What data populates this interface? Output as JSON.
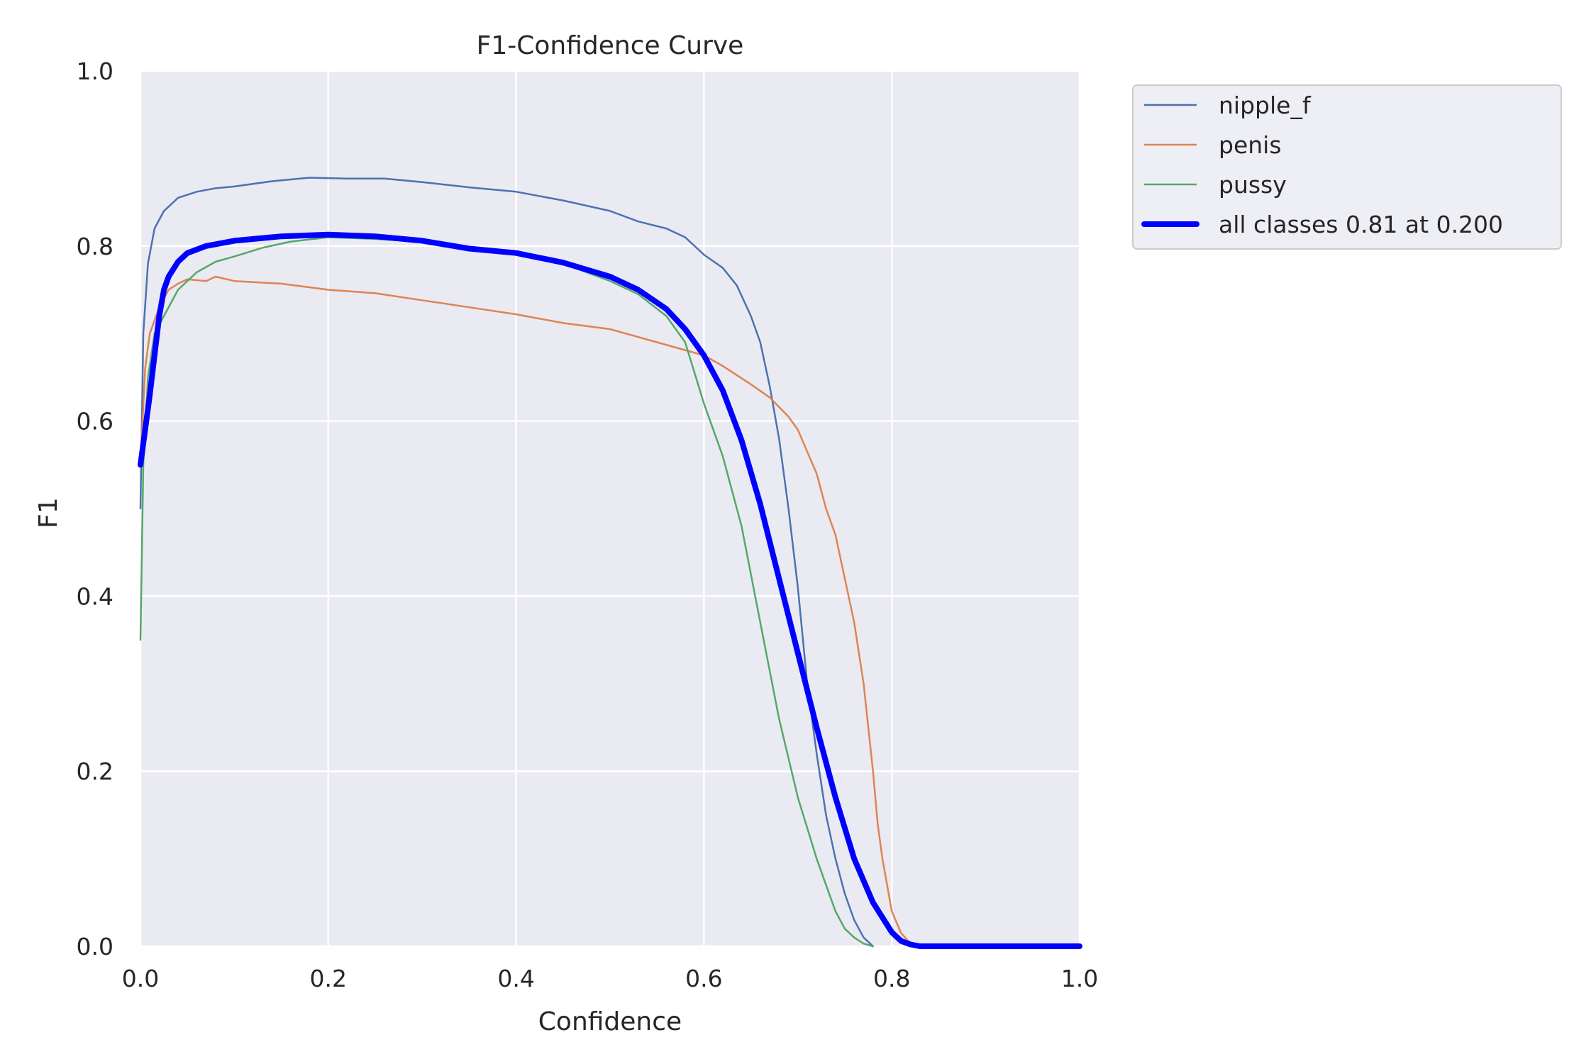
{
  "chart_data": {
    "type": "line",
    "title": "F1-Confidence Curve",
    "xlabel": "Confidence",
    "ylabel": "F1",
    "xlim": [
      0.0,
      1.0
    ],
    "ylim": [
      0.0,
      1.0
    ],
    "xticks": [
      "0.0",
      "0.2",
      "0.4",
      "0.6",
      "0.8",
      "1.0"
    ],
    "yticks": [
      "0.0",
      "0.2",
      "0.4",
      "0.6",
      "0.8",
      "1.0"
    ],
    "grid": true,
    "legend_position": "outside upper right",
    "background_color": "#eaeaf2",
    "series": [
      {
        "name": "nipple_f",
        "color": "#4c72b0",
        "width": 2.5,
        "x": [
          0.0,
          0.003,
          0.008,
          0.015,
          0.025,
          0.04,
          0.06,
          0.08,
          0.1,
          0.14,
          0.18,
          0.22,
          0.26,
          0.3,
          0.35,
          0.4,
          0.45,
          0.5,
          0.53,
          0.56,
          0.58,
          0.6,
          0.62,
          0.635,
          0.65,
          0.66,
          0.67,
          0.68,
          0.69,
          0.7,
          0.71,
          0.72,
          0.73,
          0.74,
          0.75,
          0.76,
          0.77,
          0.78
        ],
        "y": [
          0.5,
          0.7,
          0.78,
          0.82,
          0.84,
          0.855,
          0.862,
          0.866,
          0.868,
          0.874,
          0.878,
          0.877,
          0.877,
          0.873,
          0.867,
          0.862,
          0.852,
          0.84,
          0.828,
          0.82,
          0.81,
          0.79,
          0.775,
          0.755,
          0.72,
          0.69,
          0.64,
          0.58,
          0.5,
          0.41,
          0.3,
          0.22,
          0.15,
          0.1,
          0.06,
          0.03,
          0.01,
          0.0
        ]
      },
      {
        "name": "penis",
        "color": "#dd8452",
        "width": 2.5,
        "x": [
          0.0,
          0.005,
          0.01,
          0.02,
          0.03,
          0.04,
          0.05,
          0.07,
          0.08,
          0.1,
          0.15,
          0.2,
          0.25,
          0.3,
          0.35,
          0.4,
          0.45,
          0.5,
          0.55,
          0.6,
          0.62,
          0.65,
          0.67,
          0.69,
          0.7,
          0.71,
          0.72,
          0.73,
          0.74,
          0.75,
          0.76,
          0.77,
          0.775,
          0.78,
          0.785,
          0.79,
          0.8,
          0.81,
          0.82,
          0.83
        ],
        "y": [
          0.55,
          0.66,
          0.7,
          0.73,
          0.75,
          0.757,
          0.762,
          0.76,
          0.765,
          0.76,
          0.757,
          0.75,
          0.746,
          0.738,
          0.73,
          0.722,
          0.712,
          0.705,
          0.69,
          0.675,
          0.663,
          0.642,
          0.627,
          0.605,
          0.59,
          0.565,
          0.54,
          0.5,
          0.47,
          0.42,
          0.37,
          0.3,
          0.25,
          0.2,
          0.14,
          0.1,
          0.04,
          0.015,
          0.003,
          0.0
        ]
      },
      {
        "name": "pussy",
        "color": "#55a868",
        "width": 2.5,
        "x": [
          0.0,
          0.003,
          0.008,
          0.015,
          0.025,
          0.04,
          0.06,
          0.08,
          0.1,
          0.13,
          0.16,
          0.2,
          0.25,
          0.3,
          0.35,
          0.4,
          0.45,
          0.5,
          0.53,
          0.56,
          0.58,
          0.6,
          0.62,
          0.64,
          0.66,
          0.68,
          0.7,
          0.72,
          0.73,
          0.74,
          0.75,
          0.76,
          0.77,
          0.78
        ],
        "y": [
          0.35,
          0.55,
          0.65,
          0.7,
          0.72,
          0.75,
          0.77,
          0.782,
          0.788,
          0.798,
          0.805,
          0.81,
          0.808,
          0.805,
          0.797,
          0.79,
          0.78,
          0.76,
          0.745,
          0.72,
          0.69,
          0.62,
          0.56,
          0.48,
          0.37,
          0.26,
          0.17,
          0.1,
          0.07,
          0.04,
          0.02,
          0.01,
          0.003,
          0.0
        ]
      },
      {
        "name": "all classes 0.81 at 0.200",
        "color": "#0000ff",
        "width": 8,
        "x": [
          0.0,
          0.01,
          0.02,
          0.025,
          0.03,
          0.04,
          0.05,
          0.07,
          0.1,
          0.15,
          0.2,
          0.25,
          0.3,
          0.35,
          0.4,
          0.45,
          0.5,
          0.53,
          0.56,
          0.58,
          0.6,
          0.62,
          0.64,
          0.66,
          0.68,
          0.7,
          0.72,
          0.74,
          0.76,
          0.78,
          0.8,
          0.81,
          0.82,
          0.83,
          0.85,
          1.0
        ],
        "y": [
          0.55,
          0.63,
          0.72,
          0.75,
          0.765,
          0.782,
          0.792,
          0.8,
          0.806,
          0.811,
          0.813,
          0.811,
          0.806,
          0.797,
          0.792,
          0.781,
          0.765,
          0.75,
          0.728,
          0.705,
          0.675,
          0.635,
          0.578,
          0.505,
          0.42,
          0.335,
          0.25,
          0.17,
          0.1,
          0.05,
          0.016,
          0.006,
          0.002,
          0.0,
          0.0,
          0.0
        ]
      }
    ]
  }
}
